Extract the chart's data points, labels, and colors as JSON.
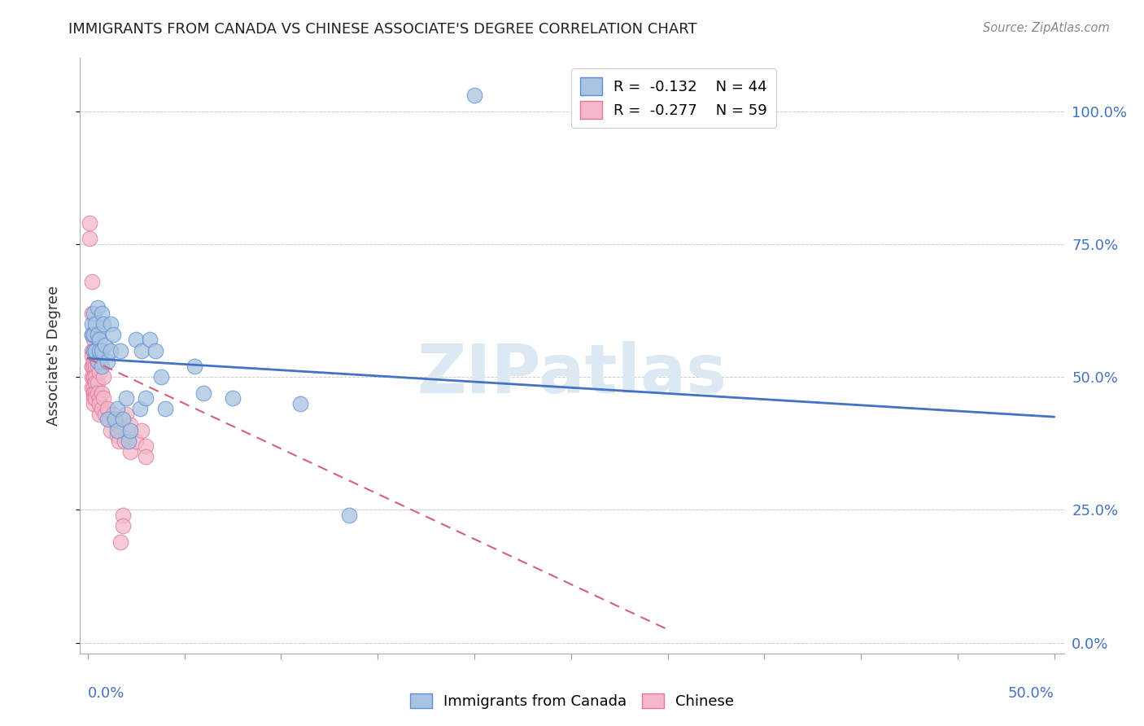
{
  "title": "IMMIGRANTS FROM CANADA VS CHINESE ASSOCIATE'S DEGREE CORRELATION CHART",
  "source": "Source: ZipAtlas.com",
  "ylabel": "Associate's Degree",
  "legend_blue_r": "-0.132",
  "legend_blue_n": "44",
  "legend_pink_r": "-0.277",
  "legend_pink_n": "59",
  "blue_scatter_color": "#a8c4e0",
  "pink_scatter_color": "#f4b8c8",
  "blue_edge_color": "#5b8dd9",
  "pink_edge_color": "#e07898",
  "blue_line_color": "#4472C4",
  "pink_line_color": "#d4607a",
  "axis_color": "#4472C4",
  "background_color": "#ffffff",
  "grid_color": "#cccccc",
  "blue_scatter": [
    [
      0.002,
      0.6
    ],
    [
      0.002,
      0.58
    ],
    [
      0.003,
      0.55
    ],
    [
      0.003,
      0.62
    ],
    [
      0.003,
      0.58
    ],
    [
      0.004,
      0.6
    ],
    [
      0.004,
      0.55
    ],
    [
      0.005,
      0.63
    ],
    [
      0.005,
      0.58
    ],
    [
      0.005,
      0.53
    ],
    [
      0.006,
      0.57
    ],
    [
      0.006,
      0.55
    ],
    [
      0.007,
      0.62
    ],
    [
      0.007,
      0.55
    ],
    [
      0.007,
      0.52
    ],
    [
      0.008,
      0.6
    ],
    [
      0.009,
      0.56
    ],
    [
      0.01,
      0.53
    ],
    [
      0.01,
      0.42
    ],
    [
      0.012,
      0.6
    ],
    [
      0.012,
      0.55
    ],
    [
      0.013,
      0.58
    ],
    [
      0.014,
      0.42
    ],
    [
      0.015,
      0.44
    ],
    [
      0.015,
      0.4
    ],
    [
      0.017,
      0.55
    ],
    [
      0.018,
      0.42
    ],
    [
      0.02,
      0.46
    ],
    [
      0.021,
      0.38
    ],
    [
      0.022,
      0.4
    ],
    [
      0.025,
      0.57
    ],
    [
      0.027,
      0.44
    ],
    [
      0.028,
      0.55
    ],
    [
      0.03,
      0.46
    ],
    [
      0.032,
      0.57
    ],
    [
      0.035,
      0.55
    ],
    [
      0.038,
      0.5
    ],
    [
      0.04,
      0.44
    ],
    [
      0.055,
      0.52
    ],
    [
      0.06,
      0.47
    ],
    [
      0.075,
      0.46
    ],
    [
      0.11,
      0.45
    ],
    [
      0.135,
      0.24
    ],
    [
      0.2,
      1.03
    ]
  ],
  "pink_scatter": [
    [
      0.001,
      0.79
    ],
    [
      0.001,
      0.76
    ],
    [
      0.002,
      0.68
    ],
    [
      0.002,
      0.62
    ],
    [
      0.002,
      0.58
    ],
    [
      0.002,
      0.55
    ],
    [
      0.002,
      0.54
    ],
    [
      0.002,
      0.52
    ],
    [
      0.002,
      0.52
    ],
    [
      0.002,
      0.5
    ],
    [
      0.002,
      0.48
    ],
    [
      0.003,
      0.57
    ],
    [
      0.003,
      0.55
    ],
    [
      0.003,
      0.53
    ],
    [
      0.003,
      0.52
    ],
    [
      0.003,
      0.5
    ],
    [
      0.003,
      0.5
    ],
    [
      0.003,
      0.48
    ],
    [
      0.003,
      0.47
    ],
    [
      0.003,
      0.47
    ],
    [
      0.003,
      0.46
    ],
    [
      0.003,
      0.45
    ],
    [
      0.004,
      0.55
    ],
    [
      0.004,
      0.52
    ],
    [
      0.004,
      0.5
    ],
    [
      0.004,
      0.49
    ],
    [
      0.004,
      0.47
    ],
    [
      0.004,
      0.46
    ],
    [
      0.005,
      0.53
    ],
    [
      0.005,
      0.52
    ],
    [
      0.005,
      0.49
    ],
    [
      0.005,
      0.47
    ],
    [
      0.006,
      0.51
    ],
    [
      0.006,
      0.46
    ],
    [
      0.006,
      0.45
    ],
    [
      0.006,
      0.43
    ],
    [
      0.007,
      0.47
    ],
    [
      0.007,
      0.44
    ],
    [
      0.008,
      0.5
    ],
    [
      0.008,
      0.46
    ],
    [
      0.009,
      0.43
    ],
    [
      0.01,
      0.44
    ],
    [
      0.011,
      0.42
    ],
    [
      0.012,
      0.4
    ],
    [
      0.013,
      0.43
    ],
    [
      0.015,
      0.41
    ],
    [
      0.015,
      0.39
    ],
    [
      0.016,
      0.38
    ],
    [
      0.017,
      0.19
    ],
    [
      0.018,
      0.24
    ],
    [
      0.018,
      0.22
    ],
    [
      0.019,
      0.38
    ],
    [
      0.02,
      0.43
    ],
    [
      0.022,
      0.36
    ],
    [
      0.022,
      0.41
    ],
    [
      0.025,
      0.38
    ],
    [
      0.028,
      0.4
    ],
    [
      0.03,
      0.37
    ],
    [
      0.03,
      0.35
    ]
  ],
  "xlim": [
    -0.004,
    0.505
  ],
  "ylim": [
    -0.02,
    1.1
  ],
  "yticks": [
    0.0,
    0.25,
    0.5,
    0.75,
    1.0
  ],
  "blue_trend_x": [
    0.0,
    0.5
  ],
  "blue_trend_y": [
    0.535,
    0.425
  ],
  "pink_trend_x": [
    0.0,
    0.3
  ],
  "pink_trend_y": [
    0.535,
    0.025
  ]
}
